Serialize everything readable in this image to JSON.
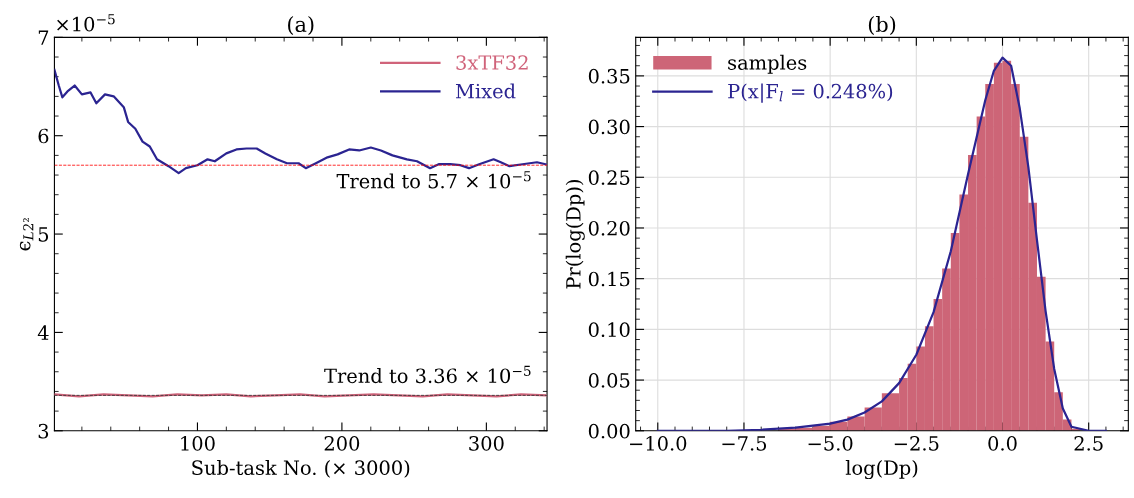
{
  "chart_data": [
    {
      "type": "line",
      "title": "(a)",
      "xlabel": "Sub-task No. (× 3000)",
      "ylabel": "ϵ$_{L2²}$",
      "xlim": [
        1,
        342
      ],
      "xticks": [
        100,
        200,
        300
      ],
      "ylim": [
        3,
        7
      ],
      "yticks": [
        3,
        4,
        5,
        6,
        7
      ],
      "legend": "top right",
      "grid": false,
      "annotations": [
        "×10$^{−5}$"
      ],
      "ref_lines": [
        {
          "axis": "y",
          "value": 5.7,
          "label": "Trend to 5.7 × 10$^{−5}$",
          "color": "#ff0000",
          "line_style": "dashed"
        },
        {
          "axis": "y",
          "value": 3.36,
          "label": "Trend to 3.36 × 10$^{−5}$",
          "color": "#333333",
          "line_style": "dashed"
        }
      ],
      "series": [
        {
          "name": "3xTF32",
          "color": "#d0637a",
          "x": [
            1,
            18,
            35,
            52,
            69,
            86,
            103,
            120,
            137,
            154,
            171,
            188,
            205,
            222,
            239,
            256,
            273,
            290,
            307,
            324,
            341
          ],
          "values": [
            3.37,
            3.35,
            3.37,
            3.36,
            3.35,
            3.37,
            3.36,
            3.37,
            3.35,
            3.36,
            3.37,
            3.35,
            3.36,
            3.37,
            3.36,
            3.35,
            3.37,
            3.36,
            3.35,
            3.37,
            3.36
          ]
        },
        {
          "name": "Mixed",
          "color": "#2b2491",
          "x": [
            1,
            4,
            6.5,
            10,
            15,
            20,
            26,
            30,
            36,
            42,
            49,
            52,
            57,
            62,
            67,
            72,
            80,
            87,
            92,
            100,
            107,
            112,
            120,
            127,
            134,
            141,
            147,
            155,
            162,
            170,
            175,
            182,
            190,
            197,
            205,
            212,
            220,
            227,
            235,
            245,
            252,
            261,
            267,
            275,
            282,
            288,
            295,
            305,
            310,
            316,
            325,
            335,
            341
          ],
          "values": [
            6.67,
            6.51,
            6.39,
            6.45,
            6.51,
            6.42,
            6.44,
            6.33,
            6.42,
            6.4,
            6.29,
            6.14,
            6.07,
            5.94,
            5.89,
            5.76,
            5.69,
            5.62,
            5.67,
            5.7,
            5.76,
            5.74,
            5.82,
            5.86,
            5.87,
            5.87,
            5.82,
            5.76,
            5.72,
            5.72,
            5.67,
            5.72,
            5.78,
            5.81,
            5.86,
            5.85,
            5.88,
            5.85,
            5.8,
            5.76,
            5.74,
            5.67,
            5.71,
            5.71,
            5.7,
            5.67,
            5.71,
            5.76,
            5.73,
            5.69,
            5.71,
            5.73,
            5.71
          ]
        }
      ]
    },
    {
      "type": "histogram",
      "title": "(b)",
      "xlabel": "log(Dp)",
      "ylabel": "Pr(log(Dp))",
      "xlim": [
        -10.64,
        3.65
      ],
      "xticks": [
        {
          "value": -10.0,
          "label": "−10.0"
        },
        {
          "value": -7.5,
          "label": "−7.5"
        },
        {
          "value": -5.0,
          "label": "−5.0"
        },
        {
          "value": -2.5,
          "label": "−2.5"
        },
        {
          "value": 0.0,
          "label": "0.0"
        },
        {
          "value": 2.5,
          "label": "2.5"
        }
      ],
      "ylim": [
        0,
        0.388
      ],
      "yticks": [
        {
          "value": 0,
          "label": "0.00"
        },
        {
          "value": 0.05,
          "label": "0.05"
        },
        {
          "value": 0.1,
          "label": "0.10"
        },
        {
          "value": 0.15,
          "label": "0.15"
        },
        {
          "value": 0.2,
          "label": "0.20"
        },
        {
          "value": 0.25,
          "label": "0.25"
        },
        {
          "value": 0.3,
          "label": "0.30"
        },
        {
          "value": 0.35,
          "label": "0.35"
        }
      ],
      "legend": "top left",
      "grid": true,
      "series": [
        {
          "name": "samples",
          "type": "histogram",
          "color": "#cd6577",
          "bins": [
            -6.5,
            -6,
            -5.5,
            -5,
            -4.5,
            -4,
            -3.5,
            -3,
            -2.75,
            -2.5,
            -2.25,
            -2,
            -1.75,
            -1.5,
            -1.25,
            -1,
            -0.75,
            -0.5,
            -0.25,
            0,
            0.25,
            0.5,
            0.75,
            1,
            1.25,
            1.5,
            1.75,
            2,
            2.25
          ],
          "values": [
            0.002,
            0.003,
            0.005,
            0.009,
            0.014,
            0.023,
            0.037,
            0.052,
            0.066,
            0.083,
            0.103,
            0.13,
            0.16,
            0.195,
            0.233,
            0.272,
            0.31,
            0.342,
            0.363,
            0.365,
            0.342,
            0.29,
            0.225,
            0.152,
            0.088,
            0.038,
            0.011,
            0.002
          ]
        },
        {
          "name": "P(x|F$_{l}$ = 0.248%)",
          "type": "line",
          "color": "#2b2491",
          "x": [
            -10,
            -9,
            -8,
            -7,
            -6,
            -5,
            -4.5,
            -4,
            -3.5,
            -3,
            -2.5,
            -2,
            -1.5,
            -1,
            -0.5,
            -0.25,
            0,
            0.25,
            0.5,
            0.75,
            1,
            1.25,
            1.5,
            1.75,
            2,
            2.5,
            3
          ],
          "values": [
            0.0,
            0.0,
            0.0,
            0.001,
            0.003,
            0.007,
            0.011,
            0.018,
            0.029,
            0.047,
            0.075,
            0.117,
            0.177,
            0.253,
            0.326,
            0.355,
            0.368,
            0.36,
            0.318,
            0.26,
            0.188,
            0.118,
            0.061,
            0.022,
            0.004,
            0.0,
            0.0
          ]
        }
      ]
    }
  ]
}
